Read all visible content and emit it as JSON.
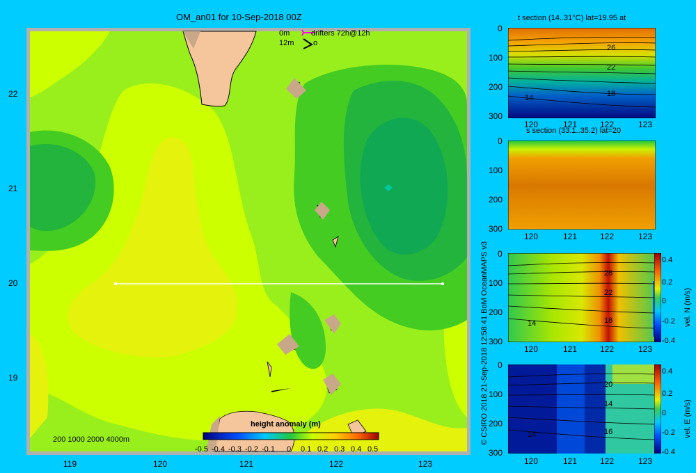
{
  "main_map": {
    "title": "OM_an01 for 10-Sep-2018 00Z",
    "legend_line1_depth": "0m",
    "legend_line1_label": "drifters 72h@12h",
    "legend_line2_depth": "12m",
    "legend_line2_label": "o",
    "xticks": [
      "119",
      "120",
      "121",
      "122",
      "123"
    ],
    "yticks": [
      "22",
      "21",
      "20",
      "19"
    ],
    "depth_contours": "200  1000  2000  4000m",
    "colorbar_title": "height anomaly  (m)",
    "colorbar_ticks": [
      "-0.5",
      "-0.4",
      "-0.3",
      "-0.2",
      "-0.1",
      "0",
      "0.1",
      "0.2",
      "0.3",
      "0.4",
      "0.5"
    ]
  },
  "sections": [
    {
      "title": "t section (14..31°C) lat=19.95 at",
      "xticks": [
        "120",
        "121",
        "122",
        "123"
      ],
      "yticks": [
        "0",
        "100",
        "200",
        "300"
      ],
      "contour_labels": [
        "26",
        "22",
        "18",
        "14"
      ]
    },
    {
      "title": "s section (33.1..35.2) lat=20",
      "xticks": [
        "120",
        "121",
        "122",
        "123"
      ],
      "yticks": [
        "0",
        "100",
        "200",
        "300"
      ],
      "contour_labels": []
    },
    {
      "title": "",
      "xticks": [
        "120",
        "121",
        "122",
        "123"
      ],
      "yticks": [
        "0",
        "100",
        "200",
        "300"
      ],
      "contour_labels": [
        "26",
        "22",
        "18",
        "14"
      ],
      "colorbar_ticks": [
        "0.4",
        "0.2",
        "0",
        "-0.2",
        "-0.4"
      ],
      "colorbar_label": "vel. N (m/s)"
    },
    {
      "title": "",
      "xticks": [
        "120",
        "121",
        "122",
        "123"
      ],
      "yticks": [
        "0",
        "100",
        "200",
        "300"
      ],
      "contour_labels": [
        "20",
        "14",
        "16",
        "14"
      ],
      "colorbar_ticks": [
        "0.4",
        "0.2",
        "0",
        "-0.2",
        "-0.4"
      ],
      "colorbar_label": "vel. E (m/s)"
    }
  ],
  "credit": "© CSIRO 2018  21-Sep-2018 12:58:41 BoM OceanMAPS v3"
}
